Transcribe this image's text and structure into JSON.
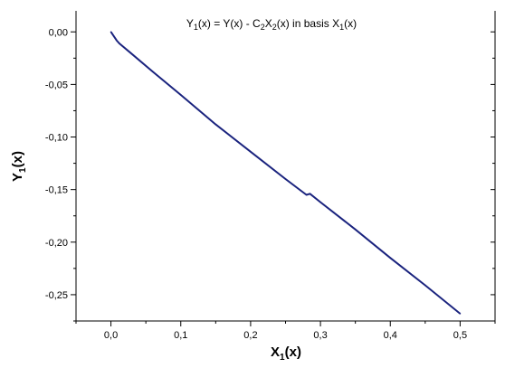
{
  "chart_data": {
    "type": "line",
    "title": {
      "parts": [
        {
          "text": "Y",
          "sub": false
        },
        {
          "text": "1",
          "sub": true
        },
        {
          "text": "(x) = Y(x) - C",
          "sub": false
        },
        {
          "text": "2",
          "sub": true
        },
        {
          "text": "X",
          "sub": false
        },
        {
          "text": "2",
          "sub": true
        },
        {
          "text": "(x) in basis  X",
          "sub": false
        },
        {
          "text": "1",
          "sub": true
        },
        {
          "text": "(x)",
          "sub": false
        }
      ]
    },
    "xlabel": {
      "main": "X",
      "sub": "1",
      "tail": "(x)"
    },
    "ylabel": {
      "main": "Y",
      "sub": "1",
      "tail": "(x)"
    },
    "xlim": [
      -0.05,
      0.55
    ],
    "ylim": [
      -0.275,
      0.02
    ],
    "x_ticks": [
      0.0,
      0.1,
      0.2,
      0.3,
      0.4,
      0.5
    ],
    "x_tick_labels": [
      "0,0",
      "0,1",
      "0,2",
      "0,3",
      "0,4",
      "0,5"
    ],
    "y_ticks": [
      0.0,
      -0.05,
      -0.1,
      -0.15,
      -0.2,
      -0.25
    ],
    "y_tick_labels": [
      "0,00",
      "-0,05",
      "-0,10",
      "-0,15",
      "-0,20",
      "-0,25"
    ],
    "series": [
      {
        "color": "#1a237e",
        "x": [
          0.0,
          0.004,
          0.008,
          0.012,
          0.03,
          0.06,
          0.1,
          0.15,
          0.2,
          0.25,
          0.28,
          0.285,
          0.3,
          0.35,
          0.4,
          0.45,
          0.5
        ],
        "y": [
          0.0,
          -0.004,
          -0.008,
          -0.011,
          -0.021,
          -0.038,
          -0.06,
          -0.088,
          -0.114,
          -0.14,
          -0.155,
          -0.154,
          -0.162,
          -0.188,
          -0.215,
          -0.241,
          -0.268
        ]
      }
    ]
  }
}
